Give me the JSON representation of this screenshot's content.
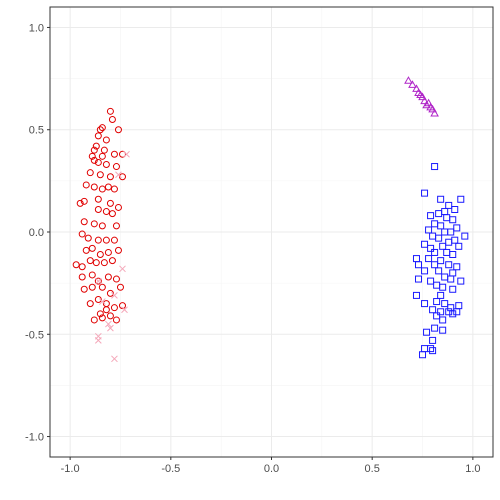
{
  "chart_data": {
    "type": "scatter",
    "title": "",
    "xlabel": "",
    "ylabel": "",
    "xlim": [
      -1.1,
      1.1
    ],
    "ylim": [
      -1.1,
      1.1
    ],
    "x_ticks": [
      -1.0,
      -0.5,
      0.0,
      0.5,
      1.0
    ],
    "y_ticks": [
      -1.0,
      -0.5,
      0.0,
      0.5,
      1.0
    ],
    "x_tick_labels": [
      "-1.0",
      "-0.5",
      "0.0",
      "0.5",
      "1.0"
    ],
    "y_tick_labels": [
      "-1.0",
      "-0.5",
      "0.0",
      "0.5",
      "1.0"
    ],
    "grid": true,
    "legend": "none",
    "series": [
      {
        "shape": "circle",
        "color": "#e00000",
        "points": [
          [
            -0.8,
            0.59
          ],
          [
            -0.84,
            0.51
          ],
          [
            -0.85,
            0.5
          ],
          [
            -0.79,
            0.55
          ],
          [
            -0.76,
            0.5
          ],
          [
            -0.86,
            0.47
          ],
          [
            -0.82,
            0.45
          ],
          [
            -0.87,
            0.42
          ],
          [
            -0.88,
            0.4
          ],
          [
            -0.83,
            0.4
          ],
          [
            -0.89,
            0.37
          ],
          [
            -0.84,
            0.37
          ],
          [
            -0.78,
            0.38
          ],
          [
            -0.74,
            0.38
          ],
          [
            -0.88,
            0.35
          ],
          [
            -0.86,
            0.34
          ],
          [
            -0.82,
            0.33
          ],
          [
            -0.77,
            0.32
          ],
          [
            -0.9,
            0.29
          ],
          [
            -0.85,
            0.28
          ],
          [
            -0.8,
            0.27
          ],
          [
            -0.74,
            0.27
          ],
          [
            -0.92,
            0.23
          ],
          [
            -0.88,
            0.22
          ],
          [
            -0.84,
            0.21
          ],
          [
            -0.81,
            0.22
          ],
          [
            -0.78,
            0.21
          ],
          [
            -0.95,
            0.14
          ],
          [
            -0.93,
            0.15
          ],
          [
            -0.86,
            0.16
          ],
          [
            -0.8,
            0.14
          ],
          [
            -0.76,
            0.12
          ],
          [
            -0.86,
            0.11
          ],
          [
            -0.82,
            0.1
          ],
          [
            -0.79,
            0.09
          ],
          [
            -0.93,
            0.05
          ],
          [
            -0.88,
            0.04
          ],
          [
            -0.84,
            0.03
          ],
          [
            -0.77,
            0.03
          ],
          [
            -0.94,
            -0.01
          ],
          [
            -0.91,
            -0.03
          ],
          [
            -0.86,
            -0.04
          ],
          [
            -0.82,
            -0.04
          ],
          [
            -0.78,
            -0.04
          ],
          [
            -0.92,
            -0.09
          ],
          [
            -0.89,
            -0.08
          ],
          [
            -0.85,
            -0.11
          ],
          [
            -0.81,
            -0.1
          ],
          [
            -0.76,
            -0.09
          ],
          [
            -0.97,
            -0.16
          ],
          [
            -0.94,
            -0.17
          ],
          [
            -0.9,
            -0.14
          ],
          [
            -0.87,
            -0.15
          ],
          [
            -0.83,
            -0.15
          ],
          [
            -0.79,
            -0.14
          ],
          [
            -0.94,
            -0.22
          ],
          [
            -0.89,
            -0.21
          ],
          [
            -0.86,
            -0.24
          ],
          [
            -0.81,
            -0.22
          ],
          [
            -0.77,
            -0.23
          ],
          [
            -0.93,
            -0.28
          ],
          [
            -0.89,
            -0.27
          ],
          [
            -0.84,
            -0.27
          ],
          [
            -0.8,
            -0.3
          ],
          [
            -0.75,
            -0.27
          ],
          [
            -0.9,
            -0.35
          ],
          [
            -0.86,
            -0.33
          ],
          [
            -0.82,
            -0.35
          ],
          [
            -0.78,
            -0.37
          ],
          [
            -0.74,
            -0.36
          ],
          [
            -0.85,
            -0.4
          ],
          [
            -0.8,
            -0.41
          ],
          [
            -0.88,
            -0.43
          ],
          [
            -0.84,
            -0.42
          ],
          [
            -0.77,
            -0.43
          ],
          [
            -0.82,
            -0.38
          ]
        ]
      },
      {
        "shape": "cross",
        "color": "#f4a7b9",
        "points": [
          [
            -0.72,
            0.38
          ],
          [
            -0.76,
            0.28
          ],
          [
            -0.86,
            -0.24
          ],
          [
            -0.78,
            -0.31
          ],
          [
            -0.74,
            -0.18
          ],
          [
            -0.81,
            -0.45
          ],
          [
            -0.86,
            -0.51
          ],
          [
            -0.86,
            -0.53
          ],
          [
            -0.78,
            -0.62
          ],
          [
            -0.73,
            -0.38
          ],
          [
            -0.84,
            -0.34
          ],
          [
            -0.8,
            -0.47
          ]
        ]
      },
      {
        "shape": "triangle",
        "color": "#b026c8",
        "points": [
          [
            0.68,
            0.74
          ],
          [
            0.7,
            0.72
          ],
          [
            0.72,
            0.7
          ],
          [
            0.73,
            0.68
          ],
          [
            0.75,
            0.66
          ],
          [
            0.76,
            0.64
          ],
          [
            0.78,
            0.63
          ],
          [
            0.79,
            0.61
          ],
          [
            0.8,
            0.6
          ],
          [
            0.81,
            0.58
          ],
          [
            0.74,
            0.67
          ],
          [
            0.77,
            0.62
          ]
        ]
      },
      {
        "shape": "square",
        "color": "#1a1aff",
        "points": [
          [
            0.81,
            0.32
          ],
          [
            0.76,
            0.19
          ],
          [
            0.84,
            0.16
          ],
          [
            0.94,
            0.16
          ],
          [
            0.88,
            0.13
          ],
          [
            0.91,
            0.11
          ],
          [
            0.79,
            0.08
          ],
          [
            0.83,
            0.09
          ],
          [
            0.86,
            0.1
          ],
          [
            0.87,
            0.07
          ],
          [
            0.9,
            0.06
          ],
          [
            0.81,
            0.04
          ],
          [
            0.84,
            0.03
          ],
          [
            0.92,
            0.02
          ],
          [
            0.78,
            0.01
          ],
          [
            0.86,
            0.0
          ],
          [
            0.89,
            0.0
          ],
          [
            0.8,
            -0.02
          ],
          [
            0.83,
            -0.03
          ],
          [
            0.96,
            -0.02
          ],
          [
            0.88,
            -0.05
          ],
          [
            0.91,
            -0.04
          ],
          [
            0.76,
            -0.06
          ],
          [
            0.79,
            -0.08
          ],
          [
            0.85,
            -0.07
          ],
          [
            0.93,
            -0.07
          ],
          [
            0.81,
            -0.1
          ],
          [
            0.87,
            -0.1
          ],
          [
            0.9,
            -0.11
          ],
          [
            0.72,
            -0.13
          ],
          [
            0.78,
            -0.13
          ],
          [
            0.84,
            -0.14
          ],
          [
            0.73,
            -0.16
          ],
          [
            0.81,
            -0.16
          ],
          [
            0.88,
            -0.16
          ],
          [
            0.92,
            -0.17
          ],
          [
            0.76,
            -0.19
          ],
          [
            0.83,
            -0.19
          ],
          [
            0.9,
            -0.2
          ],
          [
            0.86,
            -0.22
          ],
          [
            0.73,
            -0.23
          ],
          [
            0.79,
            -0.24
          ],
          [
            0.89,
            -0.23
          ],
          [
            0.94,
            -0.24
          ],
          [
            0.82,
            -0.26
          ],
          [
            0.85,
            -0.27
          ],
          [
            0.9,
            -0.28
          ],
          [
            0.72,
            -0.31
          ],
          [
            0.84,
            -0.31
          ],
          [
            0.76,
            -0.35
          ],
          [
            0.82,
            -0.34
          ],
          [
            0.86,
            -0.35
          ],
          [
            0.89,
            -0.37
          ],
          [
            0.93,
            -0.36
          ],
          [
            0.8,
            -0.38
          ],
          [
            0.84,
            -0.39
          ],
          [
            0.88,
            -0.39
          ],
          [
            0.9,
            -0.4
          ],
          [
            0.92,
            -0.39
          ],
          [
            0.82,
            -0.41
          ],
          [
            0.85,
            -0.43
          ],
          [
            0.77,
            -0.49
          ],
          [
            0.81,
            -0.47
          ],
          [
            0.85,
            -0.48
          ],
          [
            0.8,
            -0.53
          ],
          [
            0.76,
            -0.57
          ],
          [
            0.8,
            -0.58
          ],
          [
            0.75,
            -0.6
          ],
          [
            0.79,
            -0.57
          ]
        ]
      }
    ]
  }
}
